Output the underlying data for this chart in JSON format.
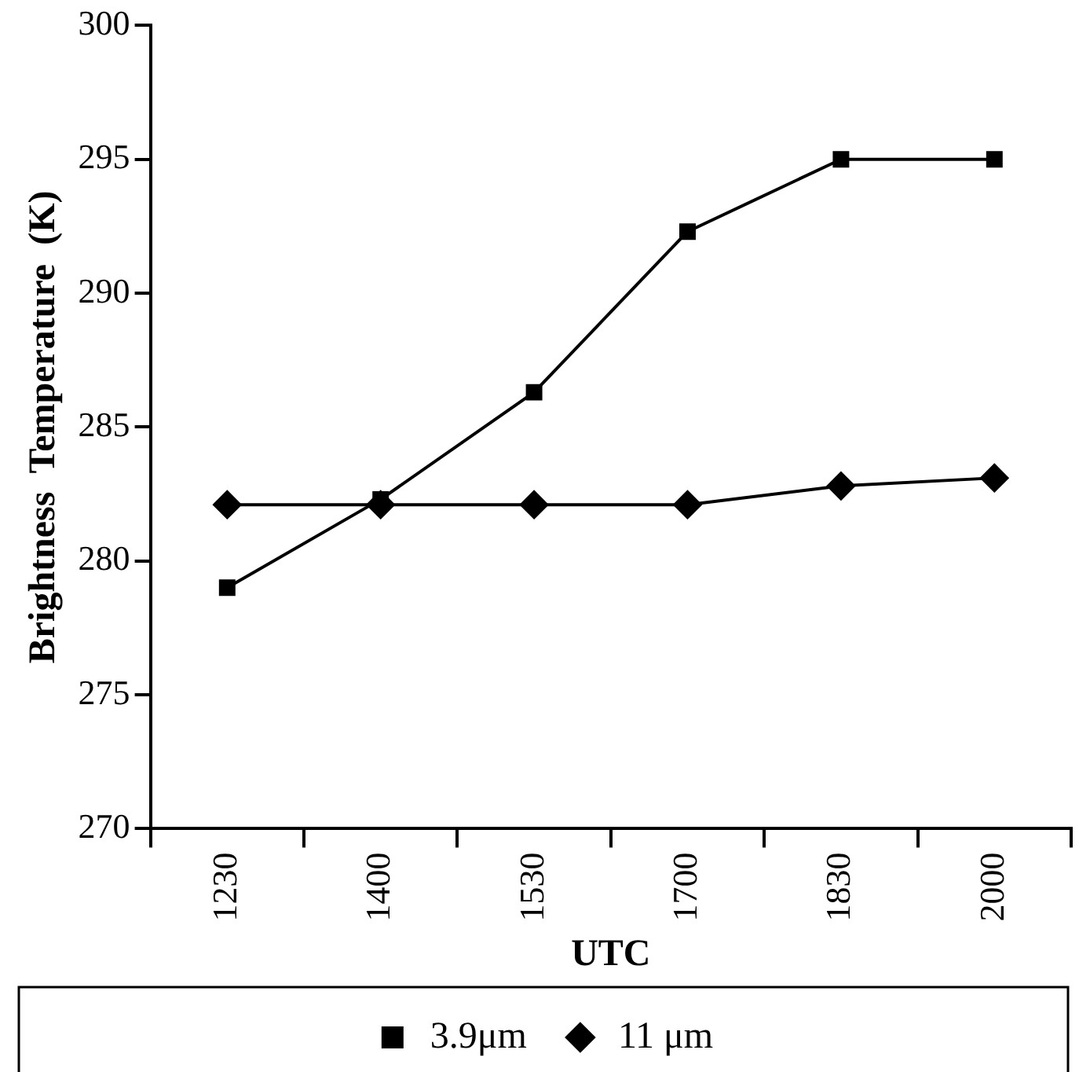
{
  "chart_data": {
    "type": "line",
    "xlabel": "UTC",
    "ylabel": "Brightness  Temperature  (K)",
    "categories": [
      "1230",
      "1400",
      "1530",
      "1700",
      "1830",
      "2000"
    ],
    "series": [
      {
        "name": "3.9μm",
        "color": "#000000",
        "marker": "square",
        "values": [
          279.0,
          282.3,
          286.3,
          292.3,
          295.0,
          295.0
        ]
      },
      {
        "name": "11 μm",
        "color": "#000000",
        "marker": "diamond",
        "values": [
          282.1,
          282.1,
          282.1,
          282.1,
          282.8,
          283.1
        ]
      }
    ],
    "ylim": [
      270,
      300
    ],
    "yticks": [
      270,
      275,
      280,
      285,
      290,
      295,
      300
    ],
    "grid": false,
    "legend": "bottom",
    "line_style": "solid"
  }
}
